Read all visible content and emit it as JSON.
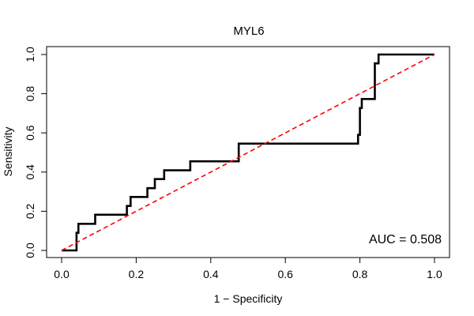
{
  "chart_data": {
    "type": "line",
    "title": "MYL6",
    "xlabel": "1 − Specificity",
    "ylabel": "Sensitivity",
    "xlim": [
      0,
      1
    ],
    "ylim": [
      0,
      1
    ],
    "xticks": [
      "0.0",
      "0.2",
      "0.4",
      "0.6",
      "0.8",
      "1.0"
    ],
    "yticks": [
      "0.0",
      "0.2",
      "0.4",
      "0.6",
      "0.8",
      "1.0"
    ],
    "grid": false,
    "annotation": "AUC = 0.508",
    "series": [
      {
        "color": "#000000",
        "style": "solid",
        "points": [
          [
            0.0,
            0.0
          ],
          [
            0.04,
            0.0
          ],
          [
            0.04,
            0.09
          ],
          [
            0.045,
            0.09
          ],
          [
            0.045,
            0.136
          ],
          [
            0.09,
            0.136
          ],
          [
            0.09,
            0.182
          ],
          [
            0.175,
            0.182
          ],
          [
            0.175,
            0.227
          ],
          [
            0.185,
            0.227
          ],
          [
            0.185,
            0.273
          ],
          [
            0.23,
            0.273
          ],
          [
            0.23,
            0.318
          ],
          [
            0.25,
            0.318
          ],
          [
            0.25,
            0.364
          ],
          [
            0.275,
            0.364
          ],
          [
            0.275,
            0.409
          ],
          [
            0.345,
            0.409
          ],
          [
            0.345,
            0.455
          ],
          [
            0.475,
            0.455
          ],
          [
            0.475,
            0.545
          ],
          [
            0.795,
            0.545
          ],
          [
            0.795,
            0.59
          ],
          [
            0.8,
            0.59
          ],
          [
            0.8,
            0.727
          ],
          [
            0.805,
            0.727
          ],
          [
            0.805,
            0.773
          ],
          [
            0.84,
            0.773
          ],
          [
            0.84,
            0.955
          ],
          [
            0.85,
            0.955
          ],
          [
            0.85,
            1.0
          ],
          [
            1.0,
            1.0
          ]
        ]
      },
      {
        "color": "#ff0000",
        "style": "dashed",
        "points": [
          [
            0,
            0
          ],
          [
            1,
            1
          ]
        ]
      }
    ]
  }
}
